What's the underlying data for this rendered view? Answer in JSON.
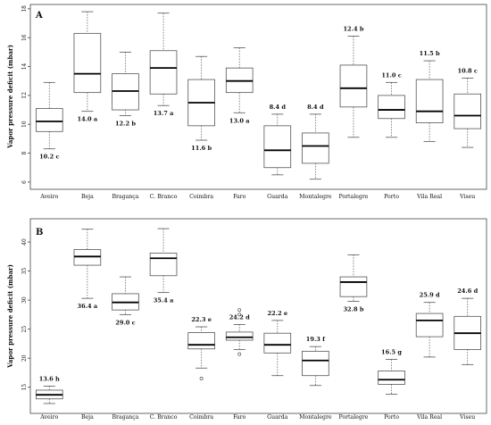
{
  "chart_data": [
    {
      "type": "box",
      "panel": "A",
      "ylabel": "Vapor pressure deficit (mbar)",
      "ylim": [
        5.5,
        18.3
      ],
      "yticks": [
        6,
        8,
        10,
        12,
        14,
        16,
        18
      ],
      "grid": false,
      "categories": [
        "Aveiro",
        "Beja",
        "Bragança",
        "C. Branco",
        "Coimbra",
        "Faro",
        "Guarda",
        "Montalegre",
        "Portalegre",
        "Porto",
        "Vila Real",
        "Viseu"
      ],
      "boxes": [
        {
          "min": 8.3,
          "q1": 9.5,
          "median": 10.2,
          "q3": 11.1,
          "max": 12.9,
          "outliers": []
        },
        {
          "min": 10.9,
          "q1": 12.2,
          "median": 13.5,
          "q3": 16.3,
          "max": 17.8,
          "outliers": []
        },
        {
          "min": 10.6,
          "q1": 11.0,
          "median": 12.3,
          "q3": 13.5,
          "max": 15.0,
          "outliers": []
        },
        {
          "min": 11.3,
          "q1": 12.1,
          "median": 13.9,
          "q3": 15.1,
          "max": 17.7,
          "outliers": []
        },
        {
          "min": 8.9,
          "q1": 9.9,
          "median": 11.5,
          "q3": 13.1,
          "max": 14.7,
          "outliers": []
        },
        {
          "min": 10.8,
          "q1": 12.2,
          "median": 13.0,
          "q3": 13.9,
          "max": 15.3,
          "outliers": []
        },
        {
          "min": 6.5,
          "q1": 7.0,
          "median": 8.2,
          "q3": 9.9,
          "max": 10.7,
          "outliers": []
        },
        {
          "min": 6.2,
          "q1": 7.3,
          "median": 8.5,
          "q3": 9.4,
          "max": 10.7,
          "outliers": []
        },
        {
          "min": 9.1,
          "q1": 11.2,
          "median": 12.5,
          "q3": 14.1,
          "max": 16.1,
          "outliers": []
        },
        {
          "min": 9.1,
          "q1": 10.4,
          "median": 11.0,
          "q3": 12.0,
          "max": 12.9,
          "outliers": []
        },
        {
          "min": 8.8,
          "q1": 10.1,
          "median": 10.9,
          "q3": 13.1,
          "max": 14.4,
          "outliers": []
        },
        {
          "min": 8.4,
          "q1": 9.7,
          "median": 10.6,
          "q3": 12.1,
          "max": 13.2,
          "outliers": []
        }
      ],
      "annotations": [
        "10.2 c",
        "14.0 a",
        "12.2 b",
        "13.7 a",
        "11.6 b",
        "13.0 a",
        "8.4 d",
        "8.4 d",
        "12.4 b",
        "11.0 c",
        "11.5 b",
        "10.8 c"
      ],
      "annotation_pos": [
        "below",
        "below",
        "below",
        "below",
        "below",
        "below",
        "above",
        "above",
        "above",
        "above",
        "above",
        "above"
      ]
    },
    {
      "type": "box",
      "panel": "B",
      "ylabel": "Vapor pressure deficit (mbar)",
      "ylim": [
        10.5,
        44
      ],
      "yticks": [
        15,
        20,
        25,
        30,
        35,
        40
      ],
      "grid": false,
      "categories": [
        "Aveiro",
        "Beja",
        "Bragança",
        "C. Branco",
        "Coimbra",
        "Faro",
        "Guarda",
        "Montalegre",
        "Portalegre",
        "Porto",
        "Vila Real",
        "Viseu"
      ],
      "boxes": [
        {
          "min": 12.2,
          "q1": 13.0,
          "median": 13.7,
          "q3": 14.5,
          "max": 15.2,
          "outliers": []
        },
        {
          "min": 30.3,
          "q1": 36.0,
          "median": 37.5,
          "q3": 38.7,
          "max": 42.2,
          "outliers": []
        },
        {
          "min": 27.5,
          "q1": 28.3,
          "median": 29.6,
          "q3": 31.1,
          "max": 34.0,
          "outliers": []
        },
        {
          "min": 31.3,
          "q1": 34.2,
          "median": 37.2,
          "q3": 38.1,
          "max": 42.3,
          "outliers": []
        },
        {
          "min": 18.3,
          "q1": 21.6,
          "median": 22.3,
          "q3": 24.4,
          "max": 25.4,
          "outliers": [
            16.5
          ]
        },
        {
          "min": 21.5,
          "q1": 23.1,
          "median": 23.6,
          "q3": 24.5,
          "max": 25.8,
          "outliers": [
            27.5,
            28.3,
            20.7
          ]
        },
        {
          "min": 17.0,
          "q1": 20.9,
          "median": 22.3,
          "q3": 24.3,
          "max": 26.5,
          "outliers": []
        },
        {
          "min": 15.3,
          "q1": 17.0,
          "median": 19.6,
          "q3": 21.2,
          "max": 22.0,
          "outliers": []
        },
        {
          "min": 29.8,
          "q1": 30.6,
          "median": 33.1,
          "q3": 34.0,
          "max": 37.8,
          "outliers": []
        },
        {
          "min": 13.8,
          "q1": 15.5,
          "median": 16.3,
          "q3": 17.8,
          "max": 19.8,
          "outliers": []
        },
        {
          "min": 20.2,
          "q1": 23.7,
          "median": 26.5,
          "q3": 27.7,
          "max": 29.6,
          "outliers": []
        },
        {
          "min": 18.9,
          "q1": 21.5,
          "median": 24.3,
          "q3": 27.2,
          "max": 30.3,
          "outliers": []
        }
      ],
      "annotations": [
        "13.6 h",
        "36.4 a",
        "29.0 c",
        "35.4 a",
        "22.3 e",
        "24.2 d",
        "22.2 e",
        "19.3 f",
        "32.8 b",
        "16.5 g",
        "25.9 d",
        "24.6 d"
      ],
      "annotation_pos": [
        "above",
        "below",
        "below",
        "below",
        "above",
        "above",
        "above",
        "above",
        "below",
        "above",
        "above",
        "above"
      ]
    }
  ],
  "colors": {
    "axis": "#444444",
    "box_stroke": "#555555",
    "median": "#000000",
    "whisker": "#666666",
    "box_fill": "#ffffff"
  }
}
